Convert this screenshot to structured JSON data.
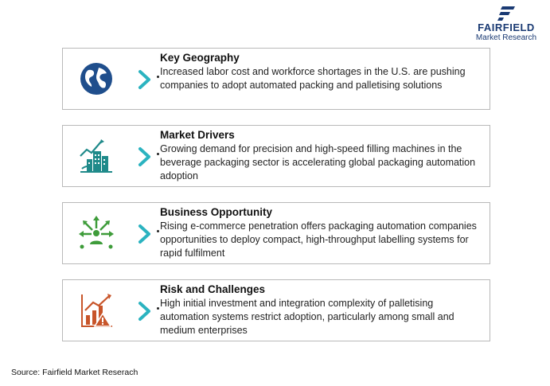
{
  "logo": {
    "line1": "FAIRFIELD",
    "line2": "Market Research"
  },
  "cards": [
    {
      "title": "Key Geography",
      "text": "Increased labor cost and workforce shortages in the U.S. are pushing companies to adopt automated packing and palletising solutions",
      "icon": "globe-icon",
      "color": "#1f4e8c"
    },
    {
      "title": "Market Drivers",
      "text": "Growing demand for precision and high-speed filling machines in the beverage packaging sector is accelerating global packaging automation adoption",
      "icon": "growth-buildings-icon",
      "color": "#1f8a8a"
    },
    {
      "title": "Business Opportunity",
      "text": "Rising e-commerce penetration offers packaging automation companies opportunities to deploy compact, high-throughput labelling systems for rapid fulfilment",
      "icon": "network-opportunity-icon",
      "color": "#3e9c3a"
    },
    {
      "title": "Risk and Challenges",
      "text": "High initial investment and integration complexity of palletising automation systems restrict adoption, particularly among small and medium enterprises",
      "icon": "risk-chart-icon",
      "color": "#c8552a"
    }
  ],
  "chevron_color": "#2bb3c0",
  "source": "Source: Fairfield Market Reserach"
}
